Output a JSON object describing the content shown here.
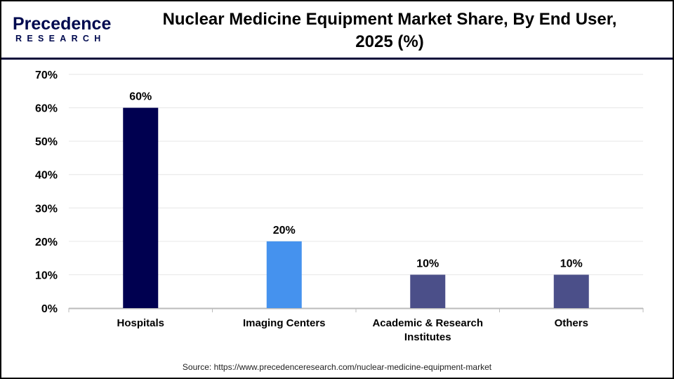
{
  "logo": {
    "text": "Precedence",
    "subtext": "RESEARCH"
  },
  "chart_data": {
    "type": "bar",
    "title": "Nuclear Medicine Equipment Market Share, By End User, 2025 (%)",
    "categories": [
      "Hospitals",
      "Imaging Centers",
      "Academic & Research Institutes",
      "Others"
    ],
    "category_lines": [
      [
        "Hospitals"
      ],
      [
        "Imaging Centers"
      ],
      [
        "Academic & Research",
        "Institutes"
      ],
      [
        "Others"
      ]
    ],
    "values": [
      60,
      20,
      10,
      10
    ],
    "data_labels": [
      "60%",
      "20%",
      "10%",
      "10%"
    ],
    "colors": [
      "#000050",
      "#4592ee",
      "#4b4f89",
      "#4b4f89"
    ],
    "ylim": [
      0,
      70
    ],
    "yticks": [
      "0%",
      "10%",
      "20%",
      "30%",
      "40%",
      "50%",
      "60%",
      "70%"
    ],
    "grid": true,
    "xlabel": "",
    "ylabel": ""
  },
  "source": "Source: https://www.precedenceresearch.com/nuclear-medicine-equipment-market"
}
